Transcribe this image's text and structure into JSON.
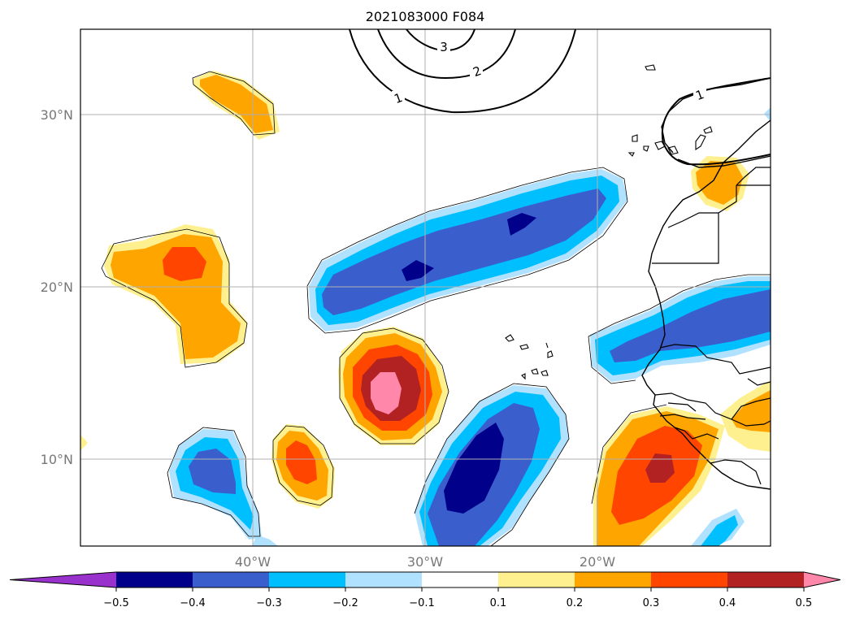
{
  "title": "2021083000 F084",
  "lon_labels": [
    "40°W",
    "30°W",
    "20°W"
  ],
  "lat_labels": [
    "30°N",
    "20°N",
    "10°N"
  ],
  "colorbar": {
    "ticks": [
      "−0.5",
      "−0.4",
      "−0.3",
      "−0.2",
      "−0.1",
      "0.1",
      "0.2",
      "0.3",
      "0.4",
      "0.5"
    ],
    "colors": [
      "#9932cc",
      "#00008b",
      "#3a5fcd",
      "#00bfff",
      "#b0e2ff",
      "#ffffff",
      "#fff08f",
      "#ffa500",
      "#ff4500",
      "#b22222",
      "#ff88aa"
    ]
  },
  "contour_labels": [
    "3",
    "2",
    "1",
    "1"
  ],
  "colors": {
    "grid": "#b0b0b0",
    "coast": "#000000"
  }
}
